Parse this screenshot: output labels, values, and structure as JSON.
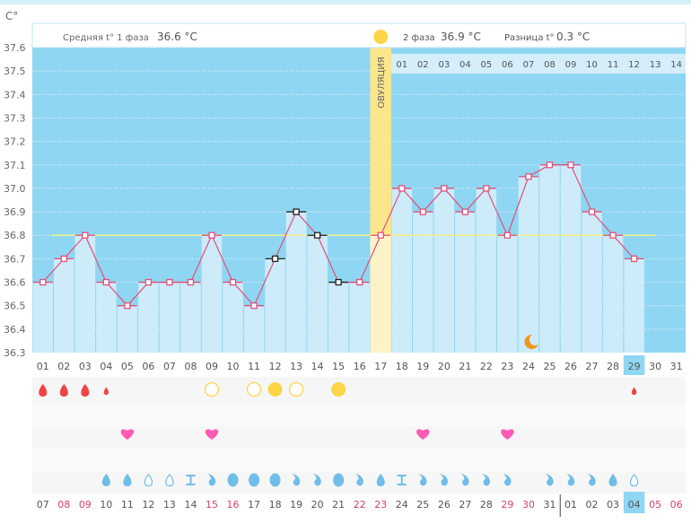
{
  "unit_label": "C°",
  "header": {
    "phase1_label": "Средняя t° 1 фаза",
    "phase1_value": "36.6 °C",
    "phase2_label": "2 фаза",
    "phase2_value": "36.9 °C",
    "diff_label": "Разница t°",
    "diff_value": "0.3 °C",
    "ovulation_label": "ОВУЛЯЦИЯ"
  },
  "colors": {
    "plot_bg": "#8fd6f2",
    "bar": "#cdebf9",
    "line": "#e0507a",
    "ovulation": "#fbe68c",
    "ovulation_light": "#fdf3c6",
    "coverline": "#f3f08a",
    "blood": "#ee4444",
    "heart": "#ff5bb5",
    "sun": "#fcd548",
    "mucus": "#6fbde8",
    "moon": "#f0961e",
    "weekend": "#e0406a",
    "today": "#8fd6f2"
  },
  "chart_data": {
    "type": "line",
    "title": "",
    "ylabel": "C°",
    "ylim": [
      36.3,
      37.6
    ],
    "y_ticks": [
      "37.6",
      "37.5",
      "37.4",
      "37.3",
      "37.2",
      "37.1",
      "37.0",
      "36.9",
      "36.8",
      "36.7",
      "36.6",
      "36.5",
      "36.4",
      "36.3"
    ],
    "cycle_days": [
      "01",
      "02",
      "03",
      "04",
      "05",
      "06",
      "07",
      "08",
      "09",
      "10",
      "11",
      "12",
      "13",
      "14",
      "15",
      "16",
      "17",
      "18",
      "19",
      "20",
      "21",
      "22",
      "23",
      "24",
      "25",
      "26",
      "27",
      "28",
      "29",
      "30",
      "31"
    ],
    "temperatures": [
      36.6,
      36.7,
      36.8,
      36.6,
      36.5,
      36.6,
      36.6,
      36.6,
      36.8,
      36.6,
      36.5,
      36.7,
      36.9,
      36.8,
      36.6,
      36.6,
      36.8,
      37.0,
      36.9,
      37.0,
      36.9,
      37.0,
      36.8,
      37.05,
      37.1,
      37.1,
      36.9,
      36.8,
      36.7,
      null,
      null
    ],
    "marker_style": [
      "red",
      "red",
      "red",
      "red",
      "red",
      "red",
      "red",
      "red",
      "red",
      "red",
      "red",
      "black",
      "black",
      "black",
      "black",
      "red",
      "red",
      "red",
      "red",
      "red",
      "red",
      "red",
      "red",
      "red",
      "red",
      "red",
      "red",
      "red",
      "red",
      null,
      null
    ],
    "coverline": 36.8,
    "ovulation_day": 17,
    "current_day": 29,
    "luteal_days": [
      "01",
      "02",
      "03",
      "04",
      "05",
      "06",
      "07",
      "08",
      "09",
      "10",
      "11",
      "12",
      "13",
      "14"
    ],
    "moon_day": 24,
    "bleeding": [
      "heavy",
      "heavy",
      "heavy",
      "light",
      "",
      "",
      "",
      "",
      "",
      "",
      "",
      "",
      "",
      "",
      "",
      "",
      "",
      "",
      "",
      "",
      "",
      "",
      "",
      "",
      "",
      "",
      "",
      "",
      "light",
      "",
      ""
    ],
    "ovulation_tests": [
      "",
      "",
      "",
      "",
      "",
      "",
      "",
      "",
      "negative",
      "",
      "negative",
      "positive",
      "negative",
      "",
      "positive",
      "",
      "",
      "",
      "",
      "",
      "",
      "",
      "",
      "",
      "",
      "",
      "",
      "",
      "",
      "",
      ""
    ],
    "intercourse": [
      false,
      false,
      false,
      false,
      true,
      false,
      false,
      false,
      true,
      false,
      false,
      false,
      false,
      false,
      false,
      false,
      false,
      false,
      true,
      false,
      false,
      false,
      true,
      false,
      false,
      false,
      false,
      false,
      false,
      false,
      false
    ],
    "mucus": [
      "",
      "",
      "",
      "watery",
      "watery",
      "creamy-empty",
      "creamy-empty",
      "sticky",
      "stretchy",
      "eggwhite",
      "eggwhite",
      "eggwhite",
      "stretchy",
      "stretchy",
      "eggwhite",
      "stretchy",
      "watery",
      "sticky",
      "stretchy",
      "stretchy",
      "stretchy",
      "stretchy",
      "stretchy",
      "",
      "stretchy",
      "stretchy",
      "stretchy",
      "watery",
      "creamy-empty",
      "",
      ""
    ],
    "dates": [
      "07",
      "08",
      "09",
      "10",
      "11",
      "12",
      "13",
      "14",
      "15",
      "16",
      "17",
      "18",
      "19",
      "20",
      "21",
      "22",
      "23",
      "24",
      "25",
      "26",
      "27",
      "28",
      "29",
      "30",
      "31",
      "01",
      "02",
      "03",
      "04",
      "05",
      "06"
    ],
    "weekend": [
      false,
      true,
      true,
      false,
      false,
      false,
      false,
      false,
      true,
      true,
      false,
      false,
      false,
      false,
      false,
      true,
      true,
      false,
      false,
      false,
      false,
      false,
      true,
      true,
      false,
      false,
      false,
      false,
      false,
      true,
      true
    ],
    "today_date_index": 28
  }
}
